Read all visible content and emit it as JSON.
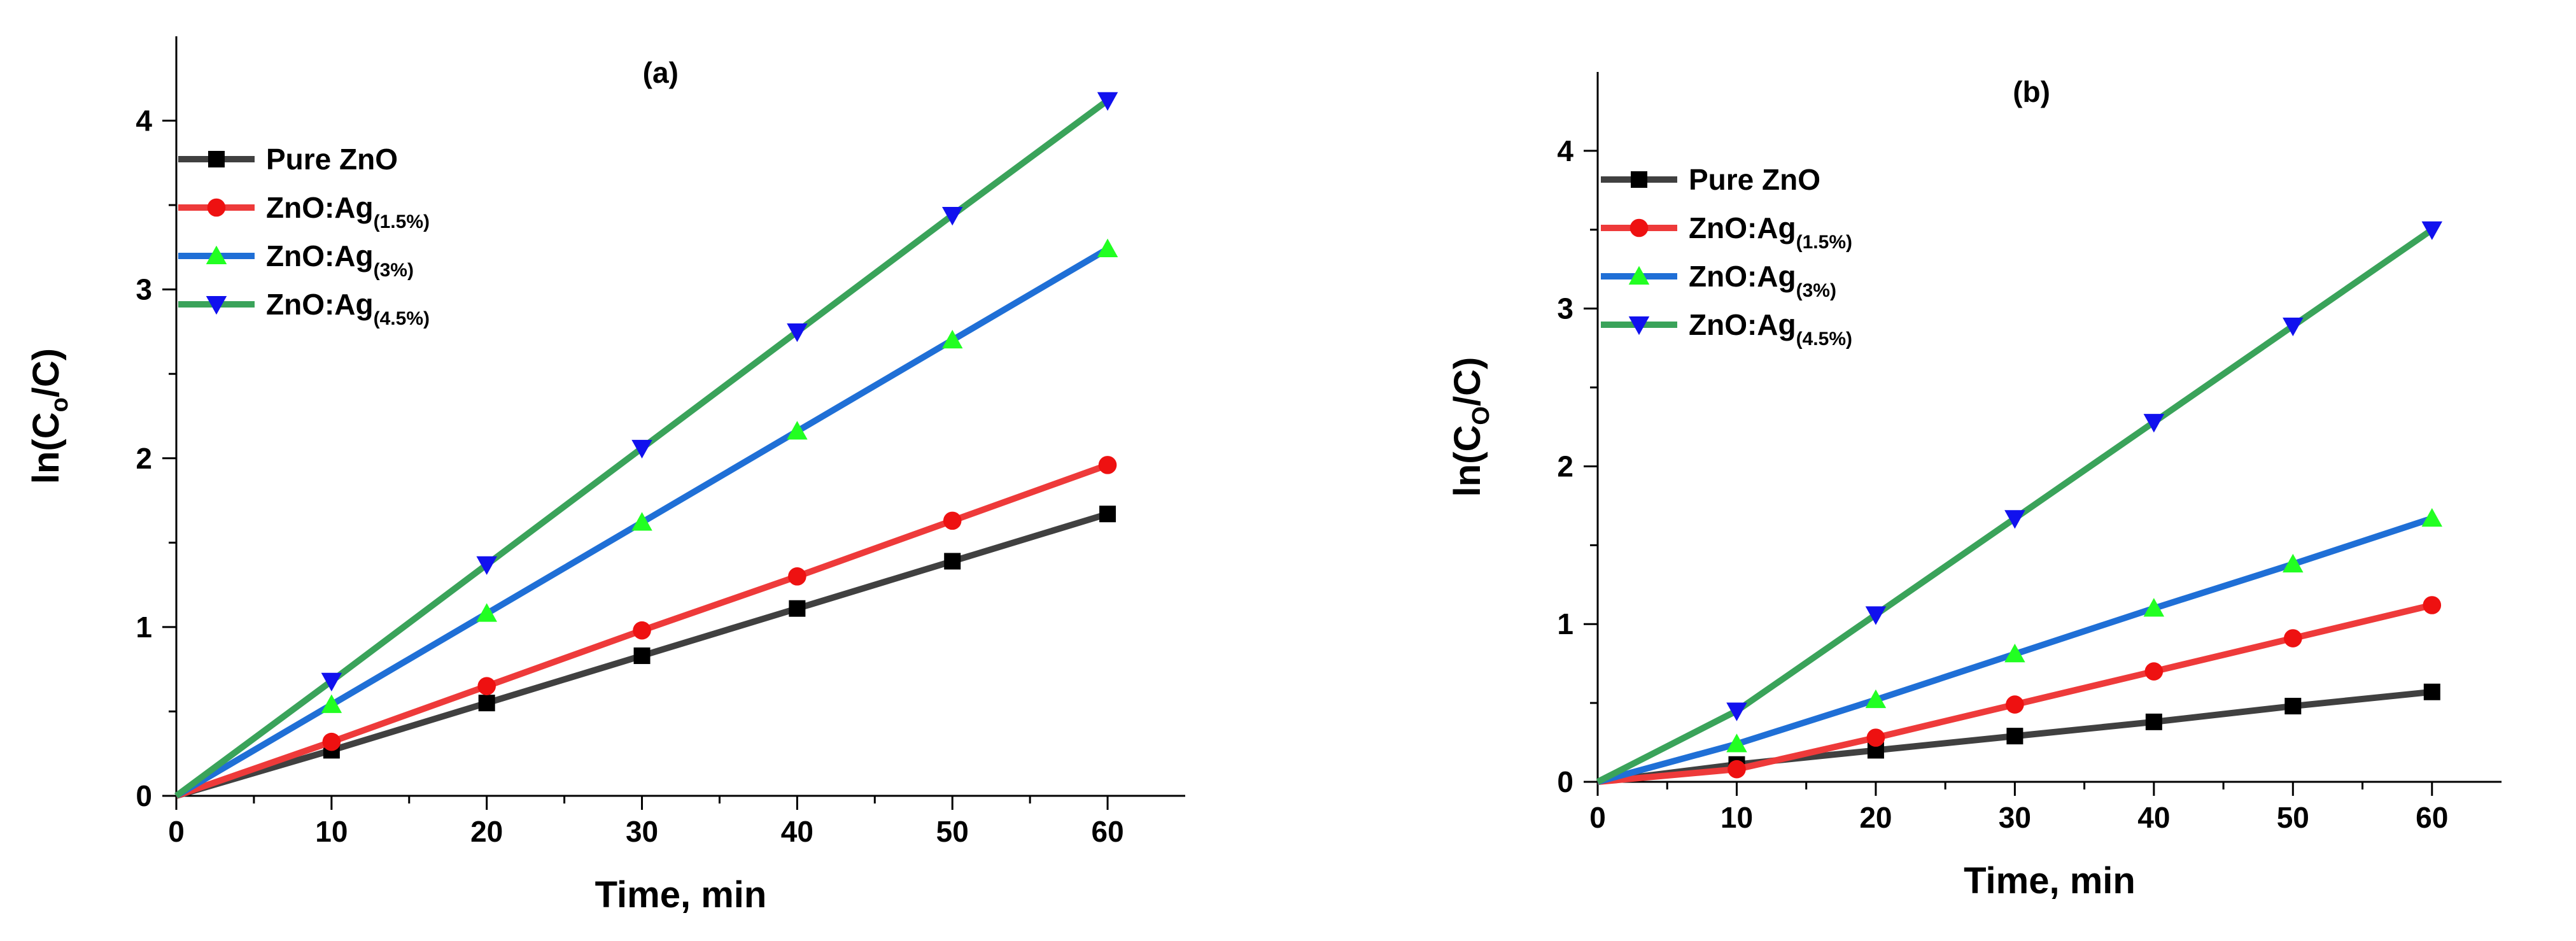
{
  "chart_data": [
    {
      "type": "line",
      "panel_label": "(a)",
      "xlabel": "Time, min",
      "ylabel": {
        "base": "ln(C",
        "sub": "o",
        "tail": "/C)"
      },
      "xlim": [
        0,
        65
      ],
      "ylim": [
        0,
        4.5
      ],
      "x_ticks": [
        0,
        10,
        20,
        30,
        40,
        50,
        60
      ],
      "y_ticks": [
        0,
        1,
        2,
        3,
        4
      ],
      "x": [
        0,
        10,
        20,
        30,
        40,
        50,
        60
      ],
      "legend_position": "top-left",
      "series": [
        {
          "name": "Pure ZnO",
          "label_main": "Pure ZnO",
          "label_sub": "",
          "color": "#404040",
          "marker": "square",
          "marker_color": "#000000",
          "values": [
            0,
            0.27,
            0.55,
            0.83,
            1.11,
            1.39,
            1.67
          ]
        },
        {
          "name": "ZnO:Ag(1.5%)",
          "label_main": "ZnO:Ag",
          "label_sub": "(1.5%)",
          "color": "#ee3a3a",
          "marker": "circle",
          "marker_color": "#ee1111",
          "values": [
            0,
            0.32,
            0.65,
            0.98,
            1.3,
            1.63,
            1.96
          ]
        },
        {
          "name": "ZnO:Ag(3%)",
          "label_main": "ZnO:Ag",
          "label_sub": "(3%)",
          "color": "#1f6fd6",
          "marker": "triangle-up",
          "marker_color": "#22ff22",
          "values": [
            0,
            0.54,
            1.08,
            1.62,
            2.16,
            2.7,
            3.24
          ]
        },
        {
          "name": "ZnO:Ag(4.5%)",
          "label_main": "ZnO:Ag",
          "label_sub": "(4.5%)",
          "color": "#3aa35a",
          "marker": "triangle-down",
          "marker_color": "#1111ee",
          "values": [
            0,
            0.68,
            1.37,
            2.06,
            2.75,
            3.44,
            4.12
          ]
        }
      ]
    },
    {
      "type": "line",
      "panel_label": "(b)",
      "xlabel": "Time, min",
      "ylabel": {
        "base": "ln(C",
        "sub": "O",
        "tail": "/C)"
      },
      "xlim": [
        0,
        65
      ],
      "ylim": [
        0,
        4.5
      ],
      "x_ticks": [
        0,
        10,
        20,
        30,
        40,
        50,
        60
      ],
      "y_ticks": [
        0,
        1,
        2,
        3,
        4
      ],
      "x": [
        0,
        10,
        20,
        30,
        40,
        50,
        60
      ],
      "legend_position": "top-left",
      "series": [
        {
          "name": "Pure ZnO",
          "label_main": "Pure ZnO",
          "label_sub": "",
          "color": "#404040",
          "marker": "square",
          "marker_color": "#000000",
          "values": [
            0,
            0.11,
            0.2,
            0.29,
            0.38,
            0.48,
            0.57
          ]
        },
        {
          "name": "ZnO:Ag(1.5%)",
          "label_main": "ZnO:Ag",
          "label_sub": "(1.5%)",
          "color": "#ee3a3a",
          "marker": "circle",
          "marker_color": "#ee1111",
          "values": [
            0,
            0.08,
            0.28,
            0.49,
            0.7,
            0.91,
            1.12
          ]
        },
        {
          "name": "ZnO:Ag(3%)",
          "label_main": "ZnO:Ag",
          "label_sub": "(3%)",
          "color": "#1f6fd6",
          "marker": "triangle-up",
          "marker_color": "#22ff22",
          "values": [
            0,
            0.24,
            0.52,
            0.81,
            1.1,
            1.38,
            1.67
          ]
        },
        {
          "name": "ZnO:Ag(4.5%)",
          "label_main": "ZnO:Ag",
          "label_sub": "(4.5%)",
          "color": "#3aa35a",
          "marker": "triangle-down",
          "marker_color": "#1111ee",
          "values": [
            0,
            0.45,
            1.06,
            1.67,
            2.28,
            2.89,
            3.5
          ]
        }
      ]
    }
  ]
}
